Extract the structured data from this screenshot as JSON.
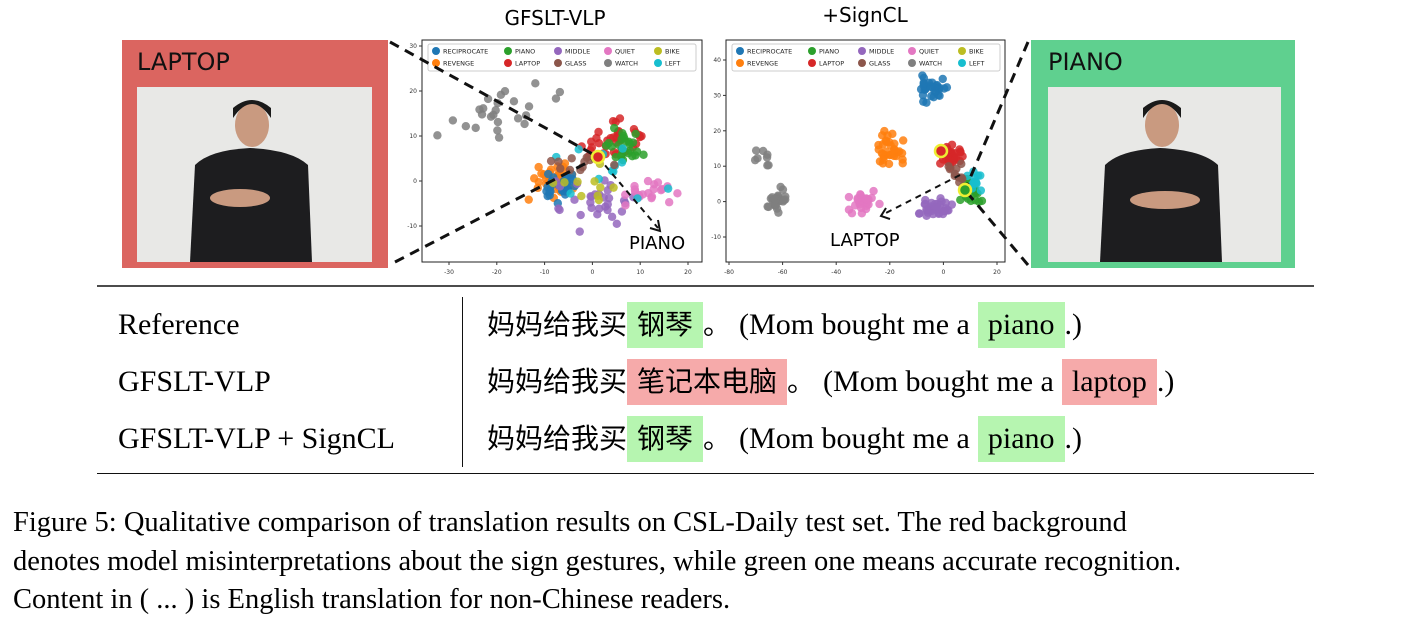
{
  "panels": [
    {
      "label": "LAPTOP"
    },
    {
      "label": "PIANO"
    }
  ],
  "plots": [
    {
      "title": "GFSLT-VLP",
      "annotation": "PIANO",
      "xticks": [
        -30,
        -20,
        -10,
        0,
        10,
        20
      ],
      "yticks": [
        30,
        20,
        10,
        0,
        -10
      ]
    },
    {
      "title": "+SignCL",
      "annotation": "LAPTOP",
      "xticks": [
        -80,
        -60,
        -40,
        -20,
        0,
        20
      ],
      "yticks": [
        40,
        30,
        20,
        10,
        0,
        -10
      ]
    }
  ],
  "legend": [
    {
      "name": "RECIPROCATE",
      "color": "#1f77b4"
    },
    {
      "name": "PIANO",
      "color": "#2ca02c"
    },
    {
      "name": "MIDDLE",
      "color": "#9467bd"
    },
    {
      "name": "QUIET",
      "color": "#e377c2"
    },
    {
      "name": "BIKE",
      "color": "#bcbd22"
    },
    {
      "name": "REVENGE",
      "color": "#ff7f0e"
    },
    {
      "name": "LAPTOP",
      "color": "#d62728"
    },
    {
      "name": "GLASS",
      "color": "#8c564b"
    },
    {
      "name": "WATCH",
      "color": "#7f7f7f"
    },
    {
      "name": "LEFT",
      "color": "#17becf"
    }
  ],
  "table": {
    "rows": [
      {
        "method": "Reference",
        "zh_prefix": "妈妈给我买",
        "zh_word": "钢琴",
        "zh_end": "。",
        "en_prefix": "(Mom bought me a",
        "en_word": "piano",
        "en_end": ".)",
        "correct": true
      },
      {
        "method": "GFSLT-VLP",
        "zh_prefix": "妈妈给我买",
        "zh_word": "笔记本电脑",
        "zh_end": "。",
        "en_prefix": "(Mom bought me a",
        "en_word": "laptop",
        "en_end": ".)",
        "correct": false
      },
      {
        "method": "GFSLT-VLP + SignCL",
        "zh_prefix": "妈妈给我买",
        "zh_word": "钢琴",
        "zh_end": "。",
        "en_prefix": "(Mom bought me a",
        "en_word": "piano",
        "en_end": ".)",
        "correct": true
      }
    ]
  },
  "caption": [
    "Figure 5: Qualitative comparison of translation results on CSL-Daily test set. The red background",
    "denotes model misinterpretations about the sign gestures, while green one means accurate recognition.",
    "Content in ( ... ) is English translation for non-Chinese readers."
  ]
}
